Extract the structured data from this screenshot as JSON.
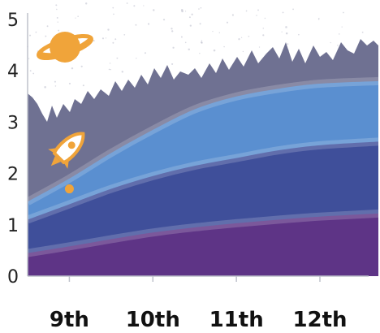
{
  "chart_data": {
    "type": "area",
    "categories": [
      "9th",
      "10th",
      "11th",
      "12th"
    ],
    "x_range": [
      8.5,
      12.7
    ],
    "ylim": [
      0,
      5
    ],
    "y_ticks": [
      "0",
      "1",
      "2",
      "3",
      "4",
      "5"
    ],
    "grid": false,
    "title": "",
    "xlabel": "",
    "ylabel": "",
    "series": [
      {
        "color": "#5e3486",
        "x": [
          8.5,
          9,
          9.5,
          10,
          10.5,
          11,
          11.5,
          12,
          12.7
        ],
        "values": [
          0.45,
          0.58,
          0.72,
          0.85,
          0.95,
          1.03,
          1.1,
          1.16,
          1.22
        ]
      },
      {
        "color": "#3f4f9a",
        "x": [
          8.5,
          9,
          9.5,
          10,
          10.5,
          11,
          11.5,
          12,
          12.7
        ],
        "values": [
          1.1,
          1.4,
          1.7,
          1.95,
          2.15,
          2.3,
          2.45,
          2.55,
          2.62
        ]
      },
      {
        "color": "#5a8fd0",
        "x": [
          8.5,
          9,
          9.5,
          10,
          10.5,
          11,
          11.5,
          12,
          12.7
        ],
        "values": [
          1.45,
          1.9,
          2.4,
          2.85,
          3.25,
          3.5,
          3.65,
          3.75,
          3.8
        ]
      }
    ],
    "background": {
      "sky_color": "#ffffff",
      "rock_color": "#6f7192"
    },
    "icons": [
      {
        "name": "planet-icon",
        "color": "#f0a43a"
      },
      {
        "name": "rocket-icon",
        "color": "#f0a43a"
      }
    ],
    "marker": {
      "x": 9,
      "y": 1.7,
      "color": "#f0a43a"
    }
  }
}
